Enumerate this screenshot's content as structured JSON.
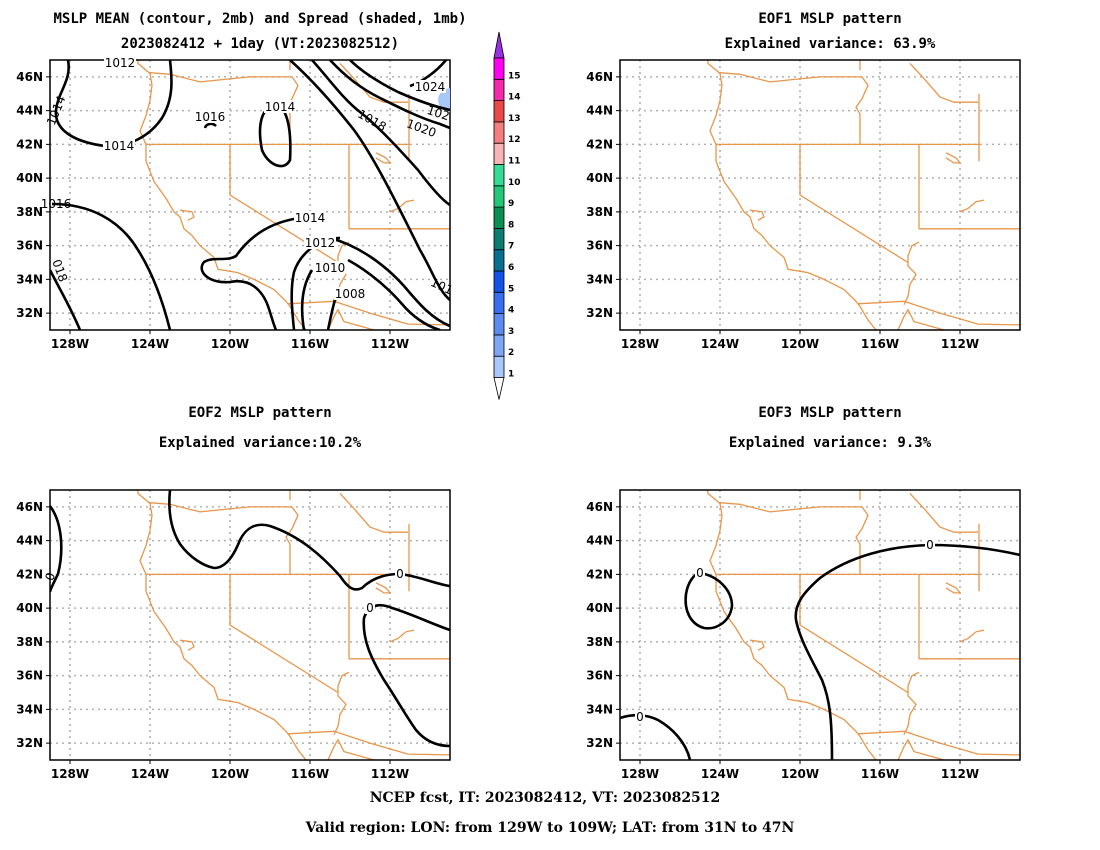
{
  "panels": [
    {
      "id": "mslp",
      "title_lines": [
        "MSLP MEAN (contour, 2mb) and Spread (shaded, 1mb)",
        "2023082412 + 1day (VT:2023082512)"
      ],
      "contour_labels": [
        "1012",
        "1014",
        "1014",
        "1016",
        "1014",
        "1018",
        "1020",
        "1024",
        "102",
        "1016",
        "1014",
        "1012",
        "1010",
        "1008",
        "101",
        "018"
      ]
    },
    {
      "id": "eof1",
      "title_lines": [
        "EOF1 MSLP pattern",
        "Explained variance: 63.9%"
      ],
      "contour_labels": []
    },
    {
      "id": "eof2",
      "title_lines": [
        "EOF2 MSLP pattern",
        "Explained variance:10.2%"
      ],
      "contour_labels": [
        "0",
        "0",
        "0"
      ]
    },
    {
      "id": "eof3",
      "title_lines": [
        "EOF3 MSLP pattern",
        "Explained variance: 9.3%"
      ],
      "contour_labels": [
        "0",
        "0",
        "0"
      ]
    }
  ],
  "axes": {
    "lon_ticks": [
      "128W",
      "124W",
      "120W",
      "116W",
      "112W"
    ],
    "lat_ticks": [
      "46N",
      "44N",
      "42N",
      "40N",
      "38N",
      "36N",
      "34N",
      "32N"
    ]
  },
  "colorbar": {
    "levels": [
      "1",
      "2",
      "3",
      "4",
      "5",
      "6",
      "7",
      "8",
      "9",
      "10",
      "11",
      "12",
      "13",
      "14",
      "15"
    ],
    "colors": [
      "#a8c8f8",
      "#7ea6f4",
      "#5c8af0",
      "#3a6ef0",
      "#1452e8",
      "#0a6e8e",
      "#0c7d70",
      "#0a8e52",
      "#22c878",
      "#34dc98",
      "#f8b4b4",
      "#f47e7e",
      "#e84a4a",
      "#f42aaa",
      "#ff00f0"
    ],
    "top_color": "#9a30e6"
  },
  "footer": {
    "line1": "NCEP fcst, IT: 2023082412, VT: 2023082512",
    "line2": "Valid region: LON: from 129W to 109W; LAT: from 31N to 47N"
  },
  "colors": {
    "border": "#e8964a",
    "grid": "#b0b0b0",
    "contour": "#000000",
    "spread_shade": "#a8c8f8"
  }
}
